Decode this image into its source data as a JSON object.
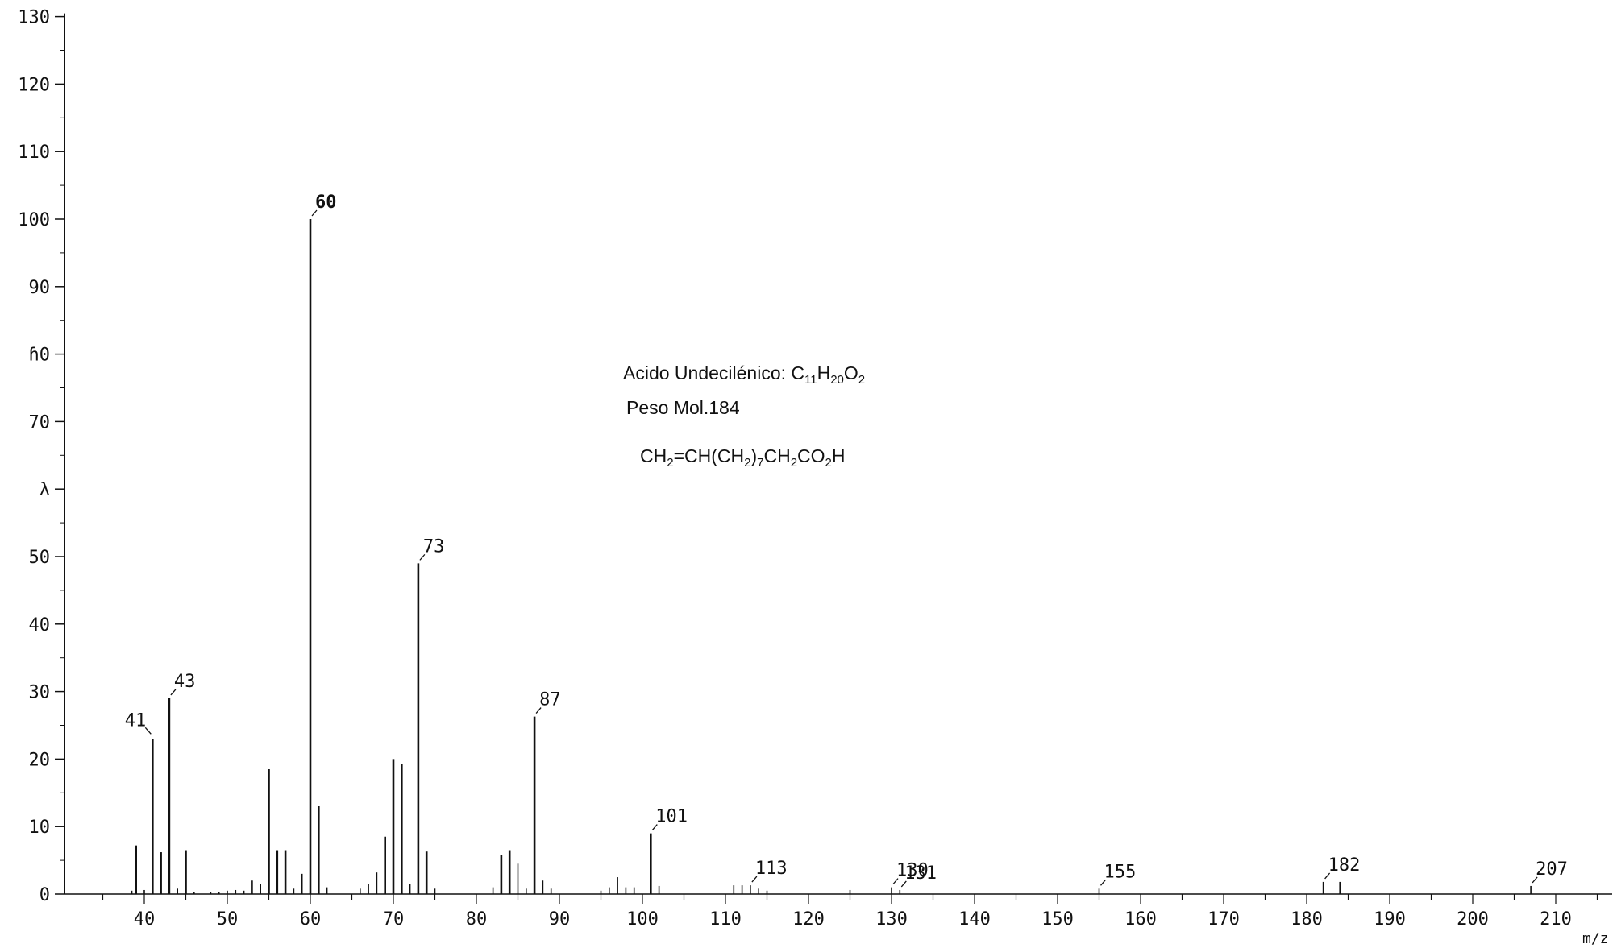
{
  "chart_data": {
    "type": "bar",
    "title": "",
    "xlabel": "m/z",
    "ylabel": "",
    "xlim": [
      32,
      218
    ],
    "ylim": [
      0,
      130
    ],
    "x_ticks": [
      40,
      50,
      60,
      70,
      80,
      90,
      100,
      110,
      120,
      130,
      140,
      150,
      160,
      170,
      180,
      190,
      200,
      210
    ],
    "y_ticks": [
      0,
      10,
      20,
      30,
      40,
      50,
      60,
      70,
      80,
      90,
      100,
      110,
      120,
      130
    ],
    "y_tick_labels": [
      "0",
      "10",
      "20",
      "30",
      "40",
      "50",
      "λ",
      "70",
      "ɦ0",
      "90",
      "100",
      "110",
      "120",
      "130"
    ],
    "grid": false,
    "series": [
      {
        "x": [
          38.5,
          39,
          40,
          41,
          42,
          43,
          44,
          45,
          46,
          48,
          49,
          50,
          51,
          52,
          53,
          54,
          55,
          56,
          57,
          58,
          59,
          60,
          61,
          62,
          66,
          67,
          68,
          69,
          70,
          71,
          72,
          73,
          74,
          75,
          82,
          83,
          84,
          85,
          86,
          87,
          88,
          89,
          95,
          96,
          97,
          98,
          99,
          101,
          102,
          111,
          112,
          113,
          114,
          115,
          125,
          130,
          131,
          155,
          182,
          184,
          207
        ],
        "values": [
          0.5,
          7.2,
          0.6,
          23,
          6.2,
          29,
          0.8,
          6.5,
          0.3,
          0.3,
          0.3,
          0.5,
          0.6,
          0.5,
          2,
          1.5,
          18.5,
          6.5,
          6.5,
          0.8,
          3,
          100,
          13,
          1,
          0.8,
          1.5,
          3.2,
          8.5,
          20,
          19.3,
          1.5,
          49,
          6.3,
          0.8,
          1,
          5.8,
          6.5,
          4.5,
          0.8,
          26.3,
          2,
          0.8,
          0.5,
          1,
          2.5,
          1,
          1,
          9,
          1.2,
          1.3,
          1.3,
          1.3,
          0.8,
          0.5,
          0.6,
          1,
          0.6,
          0.8,
          1.8,
          1.8,
          1.2
        ]
      }
    ],
    "peak_labels": [
      {
        "label": "41",
        "x": 41,
        "y": 23
      },
      {
        "label": "43",
        "x": 43,
        "y": 29
      },
      {
        "label": "60",
        "x": 60,
        "y": 100
      },
      {
        "label": "73",
        "x": 73,
        "y": 49
      },
      {
        "label": "87",
        "x": 87,
        "y": 26.3
      },
      {
        "label": "101",
        "x": 101,
        "y": 9
      },
      {
        "label": "113",
        "x": 113,
        "y": 1.3
      },
      {
        "label": "130",
        "x": 130,
        "y": 1
      },
      {
        "label": "131",
        "x": 131,
        "y": 0.6
      },
      {
        "label": "155",
        "x": 155,
        "y": 0.8
      },
      {
        "label": "182",
        "x": 182,
        "y": 1.8
      },
      {
        "label": "207",
        "x": 207,
        "y": 1.2
      }
    ]
  },
  "annotation": {
    "name_prefix": "Acido Undecilénico: C",
    "name_sub1": "11",
    "name_h": "H",
    "name_sub2": "20",
    "name_o": "O",
    "name_sub3": "2",
    "weight": "Peso Mol.184",
    "formula_parts": [
      "CH",
      "2",
      "=CH(CH",
      "2",
      ")",
      "7",
      "CH",
      "2",
      "CO",
      "2",
      "H"
    ]
  }
}
